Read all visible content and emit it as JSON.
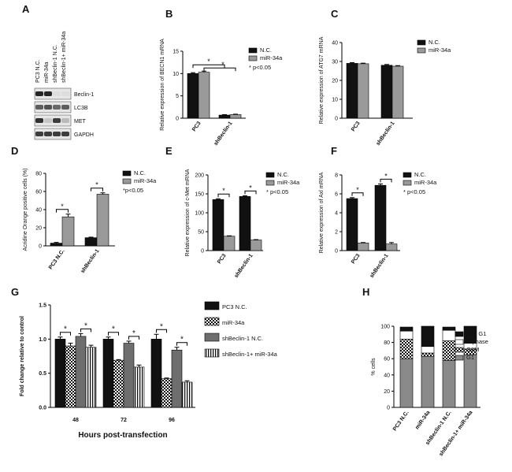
{
  "panels": {
    "A": {
      "label": "A",
      "lanes": [
        "PC3 N.C.",
        "miR-34a",
        "shBeclin-1 N.C.",
        "shBeclin-1+ miR-34a"
      ],
      "bands": [
        "Beclin-1",
        "LC3B",
        "MET",
        "GAPDH"
      ]
    },
    "B": {
      "label": "B"
    },
    "C": {
      "label": "C"
    },
    "D": {
      "label": "D"
    },
    "E": {
      "label": "E"
    },
    "F": {
      "label": "F"
    },
    "G": {
      "label": "G"
    },
    "H": {
      "label": "H"
    }
  },
  "colors": {
    "nc": "#111111",
    "mir": "#9a9a9a",
    "shnc": "#6e6e6e",
    "subg1": "#111111",
    "sphase": "#ffffff",
    "g2m": "#ffffff",
    "g1": "#8a8a8a"
  },
  "chart_data": [
    {
      "panel": "B",
      "type": "bar",
      "ylabel": "Relative expression of BECN1 mRNA",
      "categories": [
        "PC3",
        "shBeclin-1"
      ],
      "series": [
        {
          "name": "N.C.",
          "values": [
            10,
            0.7
          ],
          "errors": [
            0.2,
            0.1
          ]
        },
        {
          "name": "miR-34a",
          "values": [
            10.3,
            0.8
          ],
          "errors": [
            0.25,
            0.1
          ]
        }
      ],
      "ylim": [
        0,
        15
      ],
      "yticks": [
        0,
        5,
        10,
        15
      ],
      "legend": "top-right",
      "note": "* p<0.05",
      "significance": [
        "*",
        "*"
      ]
    },
    {
      "panel": "C",
      "type": "bar",
      "ylabel": "Relative expression of ATG7 mRNA",
      "categories": [
        "PC3",
        "shBeclin-1"
      ],
      "series": [
        {
          "name": "N.C.",
          "values": [
            29,
            28
          ],
          "errors": [
            0.4,
            0.4
          ]
        },
        {
          "name": "miR-34a",
          "values": [
            28.8,
            27.5
          ],
          "errors": [
            0.3,
            0.3
          ]
        }
      ],
      "ylim": [
        0,
        40
      ],
      "yticks": [
        0,
        10,
        20,
        30,
        40
      ],
      "legend": "top-right"
    },
    {
      "panel": "D",
      "type": "bar",
      "ylabel": "Acridine Orange positive cells (%)",
      "categories": [
        "PC3 N.C.",
        "shBeclin-1"
      ],
      "series": [
        {
          "name": "N.C.",
          "values": [
            3,
            9
          ],
          "errors": [
            0.8,
            0.6
          ]
        },
        {
          "name": "miR-34a",
          "values": [
            32,
            57
          ],
          "errors": [
            3,
            1.5
          ]
        }
      ],
      "ylim": [
        0,
        80
      ],
      "yticks": [
        0,
        20,
        40,
        60,
        80
      ],
      "legend": "top-right",
      "note": "*p<0.05",
      "significance": [
        "*",
        "*"
      ]
    },
    {
      "panel": "E",
      "type": "bar",
      "ylabel": "Relative expression of c-Met mRNA",
      "categories": [
        "PC3",
        "shBeclin-1"
      ],
      "series": [
        {
          "name": "N.C.",
          "values": [
            135,
            143
          ],
          "errors": [
            2,
            2
          ]
        },
        {
          "name": "miR-34a",
          "values": [
            38,
            28
          ],
          "errors": [
            1,
            1
          ]
        }
      ],
      "ylim": [
        0,
        200
      ],
      "yticks": [
        0,
        50,
        100,
        150,
        200
      ],
      "legend": "top-right",
      "note": "* p<0.05",
      "significance": [
        "*",
        "*"
      ]
    },
    {
      "panel": "F",
      "type": "bar",
      "ylabel": "Relative expression of Axl mRNA",
      "categories": [
        "PC3",
        "shBeclin-1"
      ],
      "series": [
        {
          "name": "N.C.",
          "values": [
            5.5,
            6.9
          ],
          "errors": [
            0.1,
            0.15
          ]
        },
        {
          "name": "miR-34a",
          "values": [
            0.8,
            0.7
          ],
          "errors": [
            0.05,
            0.15
          ]
        }
      ],
      "ylim": [
        0,
        8
      ],
      "yticks": [
        0,
        2,
        4,
        6,
        8
      ],
      "legend": "top-right",
      "note": "* p<0.05",
      "significance": [
        "*",
        "*"
      ]
    },
    {
      "panel": "G",
      "type": "bar",
      "ylabel": "Fold change relative to control",
      "xlabel": "Hours post-transfection",
      "categories": [
        "48",
        "72",
        "96"
      ],
      "series": [
        {
          "name": "PC3 N.C.",
          "values": [
            1.0,
            1.0,
            1.0
          ],
          "errors": [
            0.03,
            0.03,
            0.07
          ]
        },
        {
          "name": "miR-34a",
          "values": [
            0.9,
            0.69,
            0.42
          ],
          "errors": [
            0.04,
            0.01,
            0.01
          ]
        },
        {
          "name": "shBeclin-1 N.C.",
          "values": [
            1.04,
            0.94,
            0.84
          ],
          "errors": [
            0.04,
            0.03,
            0.04
          ]
        },
        {
          "name": "shBeclin-1+ miR-34a",
          "values": [
            0.88,
            0.59,
            0.37
          ],
          "errors": [
            0.03,
            0.03,
            0.02
          ]
        }
      ],
      "ylim": [
        0,
        1.5
      ],
      "yticks": [
        0.0,
        0.5,
        1.0,
        1.5
      ],
      "legend": "right",
      "significance": [
        "*",
        "*",
        "*",
        "*",
        "*",
        "*"
      ]
    },
    {
      "panel": "H",
      "type": "bar",
      "stacked": true,
      "ylabel": "% cells",
      "categories": [
        "PC3 N.C.",
        "miR-34a",
        "shBeclin-1 N.C.",
        "shBeclin-1+ miR-34a"
      ],
      "series": [
        {
          "name": "G1",
          "values": [
            60,
            63,
            58,
            65
          ]
        },
        {
          "name": "G2M",
          "values": [
            24,
            4,
            24,
            7
          ]
        },
        {
          "name": "S-phase",
          "values": [
            10,
            8,
            13,
            7
          ]
        },
        {
          "name": "Sub G1",
          "values": [
            5,
            25,
            4,
            21
          ]
        }
      ],
      "ylim": [
        0,
        100
      ],
      "yticks": [
        0,
        20,
        40,
        60,
        80,
        100
      ],
      "legend": "top-right"
    }
  ]
}
